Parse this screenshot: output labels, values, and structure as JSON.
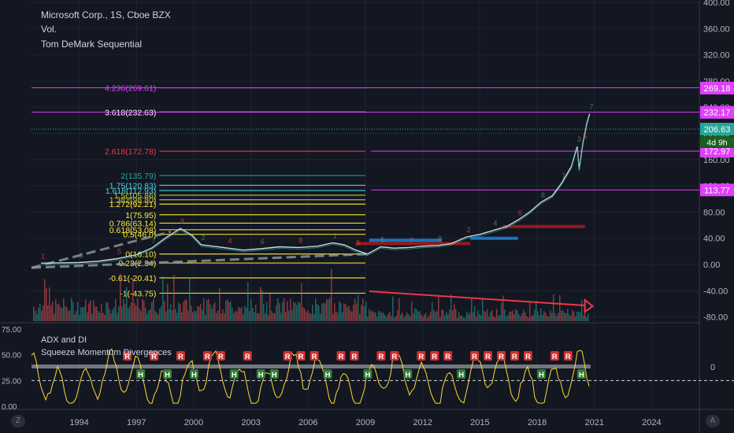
{
  "header": {
    "symbol_line": "Microsoft Corp., 1S, Cboe BZX",
    "volume_label": "Vol.",
    "indicator_label": "Tom DeMark Sequential"
  },
  "lower_pane": {
    "indicator_1": "ADX and DI",
    "indicator_2": "Squeeze Momentum Divergences",
    "y_ticks": [
      "75.00",
      "50.00",
      "25.00",
      "0.00"
    ],
    "right_tick": "0",
    "signals": [
      "R",
      "H",
      "R",
      "H",
      "R",
      "H",
      "R",
      "R",
      "H",
      "R",
      "H",
      "H",
      "R",
      "R",
      "R",
      "H",
      "R",
      "R",
      "H",
      "R",
      "R",
      "H",
      "R",
      "R",
      "R",
      "H",
      "R",
      "R",
      "R",
      "R",
      "R",
      "H",
      "R",
      "R",
      "H"
    ]
  },
  "chart_data": {
    "type": "line",
    "title": "Microsoft Corp., 1S, Cboe BZX",
    "x_ticks": [
      "1994",
      "1997",
      "2000",
      "2003",
      "2006",
      "2009",
      "2012",
      "2015",
      "2018",
      "2021",
      "2024"
    ],
    "y_ticks": [
      "400.00",
      "360.00",
      "320.00",
      "280.00",
      "240.00",
      "200.00",
      "160.00",
      "120.00",
      "80.00",
      "40.00",
      "0.00",
      "-40.00",
      "-80.00"
    ],
    "ylim": [
      -85,
      400
    ],
    "xlim": [
      1991.5,
      2026.5
    ],
    "grid": true,
    "series": [
      {
        "x": [
          1992.0,
          1993.0,
          1994.0,
          1995.0,
          1996.0,
          1997.0,
          1997.8,
          1998.5,
          1999.3,
          1999.9,
          2000.4,
          2001.0,
          2001.8,
          2002.6,
          2003.5,
          2004.5,
          2005.5,
          2006.5,
          2007.3,
          2007.9,
          2008.5,
          2009.1,
          2009.8,
          2010.5,
          2011.3,
          2012.0,
          2012.8,
          2013.5,
          2014.3,
          2015.0,
          2015.7,
          2016.4,
          2017.0,
          2017.6,
          2018.2,
          2018.8,
          2019.3,
          2019.8,
          2020.1,
          2020.2,
          2020.4,
          2020.6,
          2020.75
        ],
        "values": [
          2,
          2.5,
          3,
          5,
          9,
          15,
          25,
          40,
          55,
          45,
          30,
          28,
          25,
          22,
          24,
          27,
          26,
          28,
          33,
          30,
          22,
          16,
          27,
          25,
          26,
          28,
          29,
          32,
          42,
          46,
          52,
          58,
          68,
          80,
          95,
          105,
          125,
          150,
          180,
          145,
          185,
          215,
          230
        ]
      }
    ],
    "fib_levels": [
      {
        "label": "4.236(269.61)",
        "value": 269.61,
        "color": "#e040fb"
      },
      {
        "label": "3.618(232.63)",
        "value": 232.63,
        "color": "#ffffff"
      },
      {
        "label": "2.618(172.78)",
        "value": 172.78,
        "color": "#f23645"
      },
      {
        "label": "2(135.79)",
        "value": 135.79,
        "color": "#26a69a"
      },
      {
        "label": "1.75(120.83)",
        "value": 120.83,
        "color": "#4dd0e1"
      },
      {
        "label": "1.618(112.93)",
        "value": 112.93,
        "color": "#4dd0e1"
      },
      {
        "label": "1.5(105.86)",
        "value": 105.86,
        "color": "#c0ca33"
      },
      {
        "label": "1.382(98.80)",
        "value": 98.8,
        "color": "#c0ca33"
      },
      {
        "label": "1.272(92.21)",
        "value": 92.21,
        "color": "#ffeb3b"
      },
      {
        "label": "1(75.95)",
        "value": 75.95,
        "color": "#ffeb3b"
      },
      {
        "label": "0.786(63.14)",
        "value": 63.14,
        "color": "#ffeb3b"
      },
      {
        "label": "0.618(53.08)",
        "value": 53.08,
        "color": "#ffeb3b"
      },
      {
        "label": "0.5(46.0)",
        "value": 46.0,
        "color": "#ffeb3b"
      },
      {
        "label": "0(16.10)",
        "value": 16.1,
        "color": "#ffeb3b"
      },
      {
        "label": "-0.23(2.34)",
        "value": 2.34,
        "color": "#ffeb3b"
      },
      {
        "label": "-0.61(-20.41)",
        "value": -20.41,
        "color": "#ffeb3b"
      },
      {
        "label": "-1(-43.75)",
        "value": -43.75,
        "color": "#ffeb3b"
      }
    ],
    "price_badges": [
      {
        "label": "269.18",
        "value": 269.18,
        "color": "#e040fb"
      },
      {
        "label": "232.17",
        "value": 232.17,
        "color": "#e040fb"
      },
      {
        "label": "206.63",
        "value": 206.63,
        "color": "#26a69a"
      },
      {
        "label": "172.97",
        "value": 172.97,
        "color": "#e040fb"
      },
      {
        "label": "113.77",
        "value": 113.77,
        "color": "#e040fb"
      }
    ],
    "countdown_badge": "4d 9h",
    "current_price": 206.63
  },
  "corner_buttons": {
    "left": "Z",
    "right": "A"
  }
}
